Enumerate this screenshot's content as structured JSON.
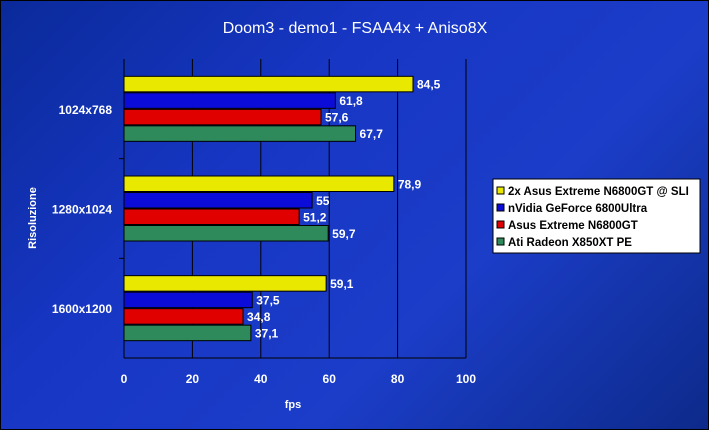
{
  "chart_data": {
    "type": "bar",
    "orientation": "horizontal",
    "title": "Doom3 - demo1 - FSAA4x + Aniso8X",
    "xlabel": "fps",
    "ylabel": "Risoluzione",
    "xlim": [
      0,
      100
    ],
    "xticks": [
      0,
      20,
      40,
      60,
      80,
      100
    ],
    "grid": "vertical",
    "legend_position": "right",
    "categories": [
      "1024x768",
      "1280x1024",
      "1600x1200"
    ],
    "series": [
      {
        "name": "2x Asus Extreme N6800GT @ SLI",
        "color": "#e8e800",
        "values": [
          84.5,
          78.9,
          59.1
        ],
        "labels": [
          "84,5",
          "78,9",
          "59,1"
        ]
      },
      {
        "name": "nVidia GeForce 6800Ultra",
        "color": "#0c0cd8",
        "values": [
          61.8,
          55,
          37.5
        ],
        "labels": [
          "61,8",
          "55",
          "37,5"
        ]
      },
      {
        "name": "Asus Extreme N6800GT",
        "color": "#e00000",
        "values": [
          57.6,
          51.2,
          34.8
        ],
        "labels": [
          "57,6",
          "51,2",
          "34,8"
        ]
      },
      {
        "name": "Ati Radeon X850XT PE",
        "color": "#2e8a5a",
        "values": [
          67.7,
          59.7,
          37.1
        ],
        "labels": [
          "67,7",
          "59,7",
          "37,1"
        ]
      }
    ]
  }
}
